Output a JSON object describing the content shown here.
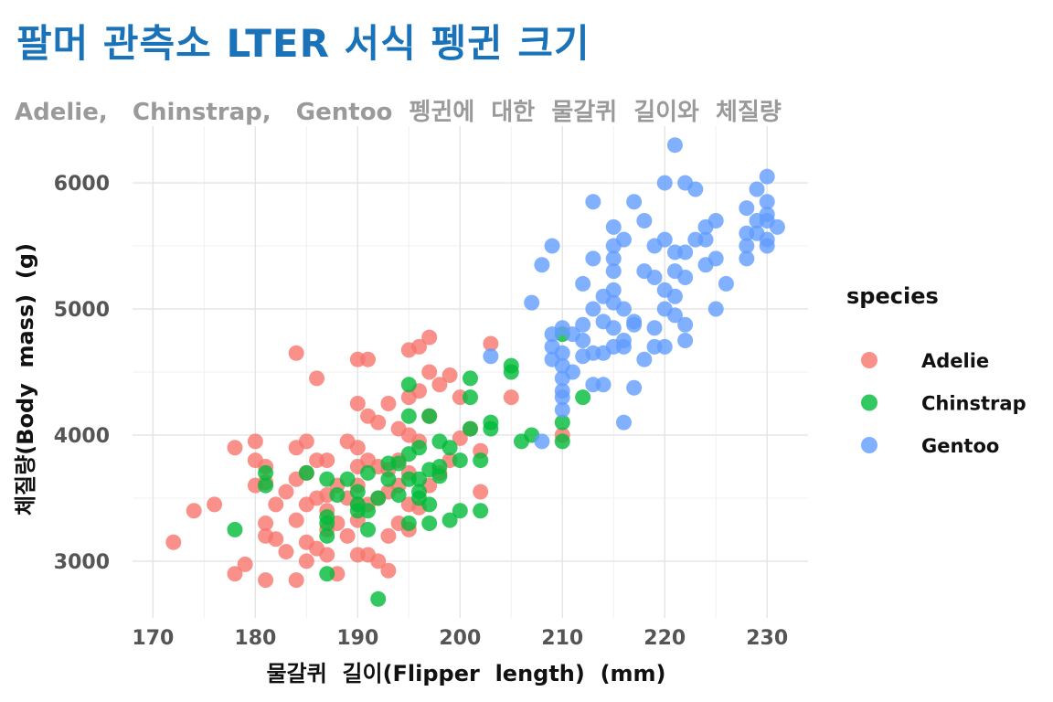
{
  "chart_data": {
    "type": "scatter",
    "title": "팔머 관측소 LTER 서식 펭귄 크기",
    "subtitle": "Adelie,   Chinstrap,   Gentoo  펭귄에  대한  물갈퀴  길이와  체질량",
    "xlabel": "물갈퀴  길이(Flipper  length)  (mm)",
    "ylabel": "체질량(Body  mass)  (g)",
    "xlim": [
      168,
      234
    ],
    "ylim": [
      2550,
      6450
    ],
    "xticks": [
      170,
      180,
      190,
      200,
      210,
      220,
      230
    ],
    "yticks": [
      3000,
      4000,
      5000,
      6000
    ],
    "grid": true,
    "legend": {
      "title": "species",
      "position": "right"
    },
    "series": [
      {
        "name": "Adelie",
        "color": "#F8766D",
        "points": [
          [
            172,
            3150
          ],
          [
            174,
            3400
          ],
          [
            176,
            3450
          ],
          [
            178,
            2900
          ],
          [
            178,
            3900
          ],
          [
            179,
            2975
          ],
          [
            180,
            3950
          ],
          [
            180,
            3800
          ],
          [
            180,
            3600
          ],
          [
            181,
            2850
          ],
          [
            181,
            3200
          ],
          [
            181,
            3300
          ],
          [
            181,
            3625
          ],
          [
            181,
            3750
          ],
          [
            182,
            3175
          ],
          [
            182,
            3450
          ],
          [
            183,
            3075
          ],
          [
            183,
            3550
          ],
          [
            184,
            2850
          ],
          [
            184,
            3325
          ],
          [
            184,
            3650
          ],
          [
            184,
            3900
          ],
          [
            184,
            4650
          ],
          [
            185,
            3000
          ],
          [
            185,
            3150
          ],
          [
            185,
            3450
          ],
          [
            185,
            3700
          ],
          [
            185,
            3950
          ],
          [
            186,
            3100
          ],
          [
            186,
            3500
          ],
          [
            186,
            3800
          ],
          [
            186,
            4450
          ],
          [
            187,
            3050
          ],
          [
            187,
            3250
          ],
          [
            187,
            3400
          ],
          [
            187,
            3525
          ],
          [
            187,
            3800
          ],
          [
            188,
            2900
          ],
          [
            188,
            3300
          ],
          [
            188,
            3600
          ],
          [
            189,
            3200
          ],
          [
            189,
            3500
          ],
          [
            189,
            3950
          ],
          [
            190,
            3050
          ],
          [
            190,
            3325
          ],
          [
            190,
            3450
          ],
          [
            190,
            3600
          ],
          [
            190,
            3750
          ],
          [
            190,
            3900
          ],
          [
            190,
            4250
          ],
          [
            190,
            4600
          ],
          [
            191,
            3050
          ],
          [
            191,
            3450
          ],
          [
            191,
            3800
          ],
          [
            191,
            4150
          ],
          [
            191,
            4600
          ],
          [
            192,
            3000
          ],
          [
            192,
            3500
          ],
          [
            192,
            3750
          ],
          [
            192,
            4100
          ],
          [
            193,
            2925
          ],
          [
            193,
            3200
          ],
          [
            193,
            3550
          ],
          [
            193,
            3725
          ],
          [
            193,
            4250
          ],
          [
            194,
            3300
          ],
          [
            194,
            3600
          ],
          [
            194,
            3800
          ],
          [
            194,
            4050
          ],
          [
            195,
            3250
          ],
          [
            195,
            3450
          ],
          [
            195,
            3700
          ],
          [
            195,
            4000
          ],
          [
            195,
            4300
          ],
          [
            195,
            4675
          ],
          [
            196,
            3425
          ],
          [
            196,
            3950
          ],
          [
            196,
            4350
          ],
          [
            196,
            4700
          ],
          [
            197,
            3600
          ],
          [
            197,
            4150
          ],
          [
            197,
            4500
          ],
          [
            197,
            4775
          ],
          [
            198,
            3700
          ],
          [
            198,
            4400
          ],
          [
            199,
            3800
          ],
          [
            199,
            4475
          ],
          [
            200,
            3975
          ],
          [
            200,
            4300
          ],
          [
            201,
            4050
          ],
          [
            202,
            3550
          ],
          [
            202,
            3875
          ],
          [
            203,
            4725
          ],
          [
            205,
            4300
          ],
          [
            210,
            4000
          ]
        ]
      },
      {
        "name": "Chinstrap",
        "color": "#00BA38",
        "points": [
          [
            178,
            3250
          ],
          [
            181,
            3600
          ],
          [
            181,
            3700
          ],
          [
            185,
            3700
          ],
          [
            187,
            2900
          ],
          [
            187,
            3200
          ],
          [
            187,
            3300
          ],
          [
            187,
            3350
          ],
          [
            187,
            3650
          ],
          [
            188,
            3525
          ],
          [
            189,
            3650
          ],
          [
            190,
            3400
          ],
          [
            190,
            3450
          ],
          [
            190,
            3550
          ],
          [
            191,
            3250
          ],
          [
            191,
            3400
          ],
          [
            191,
            3700
          ],
          [
            192,
            2700
          ],
          [
            192,
            3500
          ],
          [
            193,
            3650
          ],
          [
            193,
            3775
          ],
          [
            194,
            3525
          ],
          [
            194,
            3775
          ],
          [
            195,
            3300
          ],
          [
            195,
            3650
          ],
          [
            195,
            3850
          ],
          [
            195,
            4150
          ],
          [
            195,
            4400
          ],
          [
            196,
            3500
          ],
          [
            196,
            3550
          ],
          [
            196,
            3650
          ],
          [
            196,
            3900
          ],
          [
            197,
            3300
          ],
          [
            197,
            3450
          ],
          [
            197,
            3725
          ],
          [
            197,
            4150
          ],
          [
            198,
            3675
          ],
          [
            198,
            3750
          ],
          [
            198,
            3950
          ],
          [
            199,
            3325
          ],
          [
            199,
            3900
          ],
          [
            200,
            3400
          ],
          [
            200,
            3800
          ],
          [
            201,
            4050
          ],
          [
            201,
            4300
          ],
          [
            201,
            4450
          ],
          [
            202,
            3400
          ],
          [
            202,
            3800
          ],
          [
            203,
            4050
          ],
          [
            203,
            4100
          ],
          [
            205,
            4500
          ],
          [
            205,
            4550
          ],
          [
            206,
            3950
          ],
          [
            207,
            4000
          ],
          [
            210,
            3950
          ],
          [
            210,
            4100
          ],
          [
            210,
            4800
          ],
          [
            212,
            4300
          ]
        ]
      },
      {
        "name": "Gentoo",
        "color": "#619CFF",
        "points": [
          [
            203,
            4625
          ],
          [
            207,
            5050
          ],
          [
            208,
            3950
          ],
          [
            208,
            5350
          ],
          [
            209,
            4600
          ],
          [
            209,
            4700
          ],
          [
            209,
            4800
          ],
          [
            209,
            5500
          ],
          [
            210,
            4200
          ],
          [
            210,
            4300
          ],
          [
            210,
            4350
          ],
          [
            210,
            4450
          ],
          [
            210,
            4550
          ],
          [
            210,
            4650
          ],
          [
            210,
            4850
          ],
          [
            211,
            4500
          ],
          [
            211,
            4800
          ],
          [
            212,
            4625
          ],
          [
            212,
            4750
          ],
          [
            212,
            4875
          ],
          [
            212,
            5200
          ],
          [
            213,
            4400
          ],
          [
            213,
            4650
          ],
          [
            213,
            5000
          ],
          [
            213,
            5400
          ],
          [
            213,
            5850
          ],
          [
            214,
            4400
          ],
          [
            214,
            4650
          ],
          [
            214,
            4900
          ],
          [
            214,
            5100
          ],
          [
            215,
            4700
          ],
          [
            215,
            4850
          ],
          [
            215,
            5050
          ],
          [
            215,
            5150
          ],
          [
            215,
            5300
          ],
          [
            215,
            5400
          ],
          [
            215,
            5500
          ],
          [
            215,
            5650
          ],
          [
            216,
            4100
          ],
          [
            216,
            4700
          ],
          [
            216,
            4750
          ],
          [
            216,
            5000
          ],
          [
            216,
            5550
          ],
          [
            217,
            4375
          ],
          [
            217,
            4875
          ],
          [
            217,
            4900
          ],
          [
            217,
            5850
          ],
          [
            218,
            4600
          ],
          [
            218,
            5300
          ],
          [
            218,
            5700
          ],
          [
            219,
            4700
          ],
          [
            219,
            4850
          ],
          [
            219,
            5250
          ],
          [
            219,
            5500
          ],
          [
            220,
            4700
          ],
          [
            220,
            5000
          ],
          [
            220,
            5150
          ],
          [
            220,
            5550
          ],
          [
            220,
            6000
          ],
          [
            221,
            4950
          ],
          [
            221,
            5100
          ],
          [
            221,
            5300
          ],
          [
            221,
            5450
          ],
          [
            221,
            6300
          ],
          [
            222,
            4750
          ],
          [
            222,
            4875
          ],
          [
            222,
            5250
          ],
          [
            222,
            5450
          ],
          [
            222,
            6000
          ],
          [
            223,
            5550
          ],
          [
            223,
            5950
          ],
          [
            224,
            5550
          ],
          [
            224,
            5650
          ],
          [
            224,
            5350
          ],
          [
            225,
            5000
          ],
          [
            225,
            5400
          ],
          [
            225,
            5700
          ],
          [
            226,
            5200
          ],
          [
            228,
            5400
          ],
          [
            228,
            5500
          ],
          [
            228,
            5600
          ],
          [
            228,
            5800
          ],
          [
            229,
            5950
          ],
          [
            229,
            5600
          ],
          [
            229,
            5700
          ],
          [
            230,
            5500
          ],
          [
            230,
            5550
          ],
          [
            230,
            5700
          ],
          [
            230,
            5750
          ],
          [
            230,
            5850
          ],
          [
            230,
            6050
          ],
          [
            231,
            5650
          ]
        ]
      }
    ]
  }
}
